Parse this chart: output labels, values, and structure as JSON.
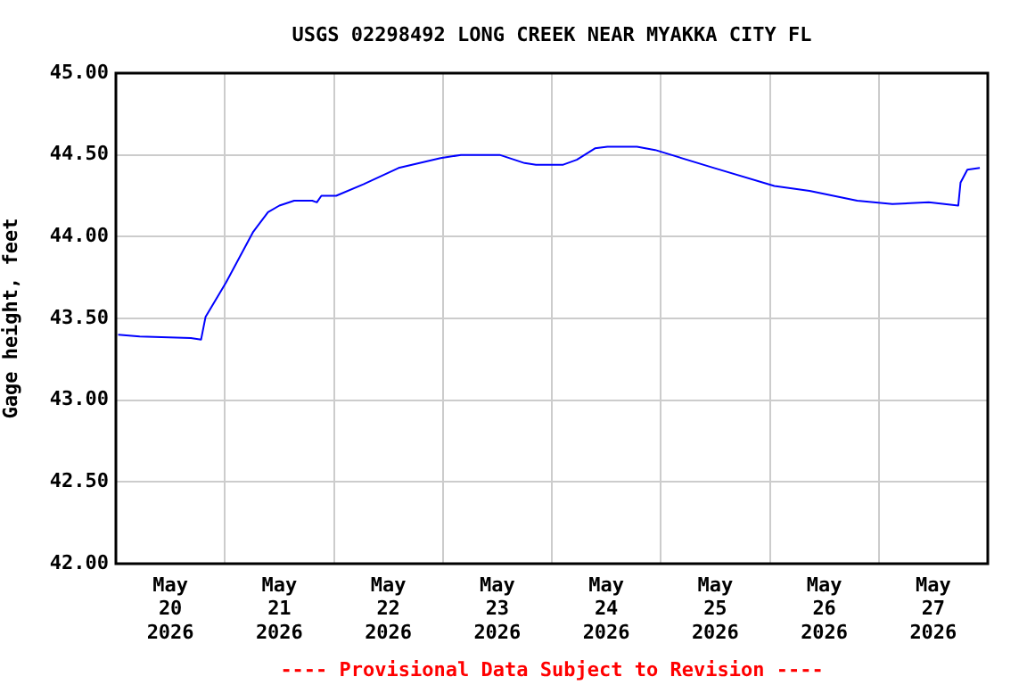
{
  "chart_data": {
    "type": "line",
    "title": "USGS 02298492 LONG CREEK NEAR MYAKKA CITY FL",
    "ylabel": "Gage height, feet",
    "annotations": [
      "---- Provisional Data Subject to Revision ----"
    ],
    "x": [
      "2026-05-20T00:30",
      "2026-05-20T05:15",
      "2026-05-20T16:30",
      "2026-05-20T18:45",
      "2026-05-20T19:45",
      "2026-05-21T00:15",
      "2026-05-21T06:15",
      "2026-05-21T09:30",
      "2026-05-21T12:00",
      "2026-05-21T15:15",
      "2026-05-21T19:15",
      "2026-05-21T20:15",
      "2026-05-21T21:15",
      "2026-05-22T00:30",
      "2026-05-22T06:30",
      "2026-05-22T14:15",
      "2026-05-22T23:30",
      "2026-05-23T04:00",
      "2026-05-23T12:30",
      "2026-05-23T18:00",
      "2026-05-23T20:30",
      "2026-05-24T02:30",
      "2026-05-24T05:30",
      "2026-05-24T09:30",
      "2026-05-24T12:15",
      "2026-05-24T18:45",
      "2026-05-24T22:45",
      "2026-05-25T11:45",
      "2026-05-26T01:00",
      "2026-05-26T08:45",
      "2026-05-26T19:15",
      "2026-05-27T03:00",
      "2026-05-27T11:00",
      "2026-05-27T17:30",
      "2026-05-27T18:00",
      "2026-05-27T19:30",
      "2026-05-27T22:15"
    ],
    "series": [
      {
        "color": "#0000ff",
        "values": [
          43.4,
          43.39,
          43.38,
          43.37,
          43.51,
          43.72,
          44.03,
          44.15,
          44.19,
          44.22,
          44.22,
          44.21,
          44.25,
          44.25,
          44.32,
          44.42,
          44.48,
          44.5,
          44.5,
          44.45,
          44.44,
          44.44,
          44.47,
          44.54,
          44.55,
          44.55,
          44.53,
          44.42,
          44.31,
          44.28,
          44.22,
          44.2,
          44.21,
          44.19,
          44.33,
          44.41,
          44.42
        ]
      }
    ],
    "xlim": [
      "2026-05-20T00:00",
      "2026-05-28T00:00"
    ],
    "xticks": [
      {
        "value": "2026-05-20T12:00",
        "label": "May 20 2026"
      },
      {
        "value": "2026-05-21T00:00",
        "label": null
      },
      {
        "value": "2026-05-21T12:00",
        "label": "May 21 2026"
      },
      {
        "value": "2026-05-22T00:00",
        "label": null
      },
      {
        "value": "2026-05-22T12:00",
        "label": "May 22 2026"
      },
      {
        "value": "2026-05-23T00:00",
        "label": null
      },
      {
        "value": "2026-05-23T12:00",
        "label": "May 23 2026"
      },
      {
        "value": "2026-05-24T00:00",
        "label": null
      },
      {
        "value": "2026-05-24T12:00",
        "label": "May 24 2026"
      },
      {
        "value": "2026-05-25T00:00",
        "label": null
      },
      {
        "value": "2026-05-25T12:00",
        "label": "May 25 2026"
      },
      {
        "value": "2026-05-26T00:00",
        "label": null
      },
      {
        "value": "2026-05-26T12:00",
        "label": "May 26 2026"
      },
      {
        "value": "2026-05-27T00:00",
        "label": null
      },
      {
        "value": "2026-05-27T12:00",
        "label": "May 27 2026"
      }
    ],
    "ylim": [
      42,
      45
    ],
    "yticks": [
      {
        "value": 42,
        "label": "42.00"
      },
      {
        "value": 42.5,
        "label": "42.50"
      },
      {
        "value": 43,
        "label": "43.00"
      },
      {
        "value": 43.5,
        "label": "43.50"
      },
      {
        "value": 44,
        "label": "44.00"
      },
      {
        "value": 44.5,
        "label": "44.50"
      },
      {
        "value": 45,
        "label": "45.00"
      }
    ],
    "grid": true,
    "legend": false,
    "marker": "none",
    "line_style": "solid"
  }
}
